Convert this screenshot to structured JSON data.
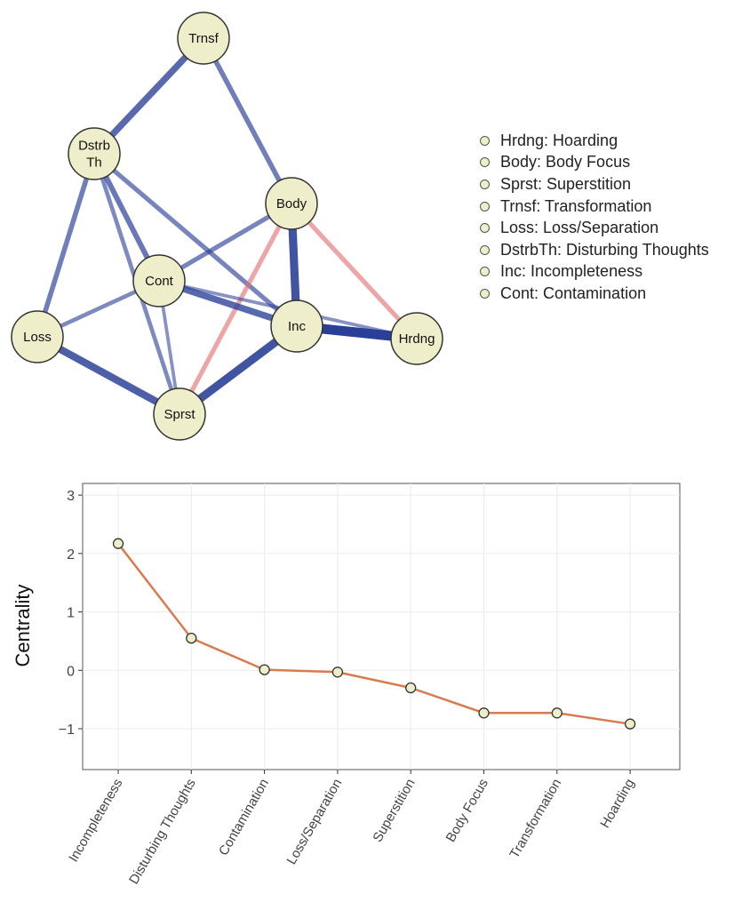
{
  "network": {
    "nodes": [
      {
        "id": "Trnsf",
        "label": "Trnsf"
      },
      {
        "id": "DstrbTh",
        "label_lines": [
          "Dstrb",
          "Th"
        ]
      },
      {
        "id": "Body",
        "label": "Body"
      },
      {
        "id": "Cont",
        "label": "Cont"
      },
      {
        "id": "Inc",
        "label": "Inc"
      },
      {
        "id": "Loss",
        "label": "Loss"
      },
      {
        "id": "Hrdng",
        "label": "Hrdng"
      },
      {
        "id": "Sprst",
        "label": "Sprst"
      }
    ],
    "edges": [
      {
        "from": "Trnsf",
        "to": "DstrbTh",
        "weight": 0.6,
        "sign": "positive"
      },
      {
        "from": "Trnsf",
        "to": "Body",
        "weight": 0.4,
        "sign": "positive"
      },
      {
        "from": "DstrbTh",
        "to": "Loss",
        "weight": 0.4,
        "sign": "positive"
      },
      {
        "from": "DstrbTh",
        "to": "Cont",
        "weight": 0.45,
        "sign": "positive"
      },
      {
        "from": "DstrbTh",
        "to": "Inc",
        "weight": 0.35,
        "sign": "positive"
      },
      {
        "from": "DstrbTh",
        "to": "Sprst",
        "weight": 0.3,
        "sign": "positive"
      },
      {
        "from": "Body",
        "to": "Inc",
        "weight": 0.8,
        "sign": "positive"
      },
      {
        "from": "Body",
        "to": "Cont",
        "weight": 0.35,
        "sign": "positive"
      },
      {
        "from": "Body",
        "to": "Hrdng",
        "weight": 0.35,
        "sign": "negative"
      },
      {
        "from": "Body",
        "to": "Sprst",
        "weight": 0.35,
        "sign": "negative"
      },
      {
        "from": "Cont",
        "to": "Inc",
        "weight": 0.6,
        "sign": "positive"
      },
      {
        "from": "Cont",
        "to": "Loss",
        "weight": 0.3,
        "sign": "positive"
      },
      {
        "from": "Cont",
        "to": "Sprst",
        "weight": 0.2,
        "sign": "positive"
      },
      {
        "from": "Cont",
        "to": "Hrdng",
        "weight": 0.2,
        "sign": "positive"
      },
      {
        "from": "Inc",
        "to": "Hrdng",
        "weight": 1.0,
        "sign": "positive"
      },
      {
        "from": "Inc",
        "to": "Sprst",
        "weight": 0.8,
        "sign": "positive"
      },
      {
        "from": "Loss",
        "to": "Sprst",
        "weight": 0.7,
        "sign": "positive"
      }
    ],
    "colors": {
      "node_fill": "#eeeecb",
      "positive": "#2a3f97",
      "negative": "#e27475"
    },
    "legend": [
      "Hrdng: Hoarding",
      "Body: Body Focus",
      "Sprst: Superstition",
      "Trnsf: Transformation",
      "Loss: Loss/Separation",
      "DstrbTh: Disturbing Thoughts",
      "Inc: Incompleteness",
      "Cont: Contamination"
    ]
  },
  "chart_data": {
    "type": "line",
    "categories": [
      "Incompleteness",
      "Disturbing Thoughts",
      "Contamination",
      "Loss/Separation",
      "Superstition",
      "Body Focus",
      "Transformation",
      "Hoarding"
    ],
    "values": [
      2.17,
      0.55,
      0.01,
      -0.03,
      -0.3,
      -0.73,
      -0.73,
      -0.92
    ],
    "xlabel": "",
    "ylabel": "Centrality",
    "ylim": [
      -1.7,
      3.2
    ],
    "yticks": [
      3,
      2,
      1,
      0,
      -1
    ],
    "ytick_labels": [
      "3",
      "2",
      "1",
      "0",
      "−1"
    ],
    "grid": true,
    "line_color": "#d97a4f",
    "marker_fill": "#eeeecb"
  }
}
